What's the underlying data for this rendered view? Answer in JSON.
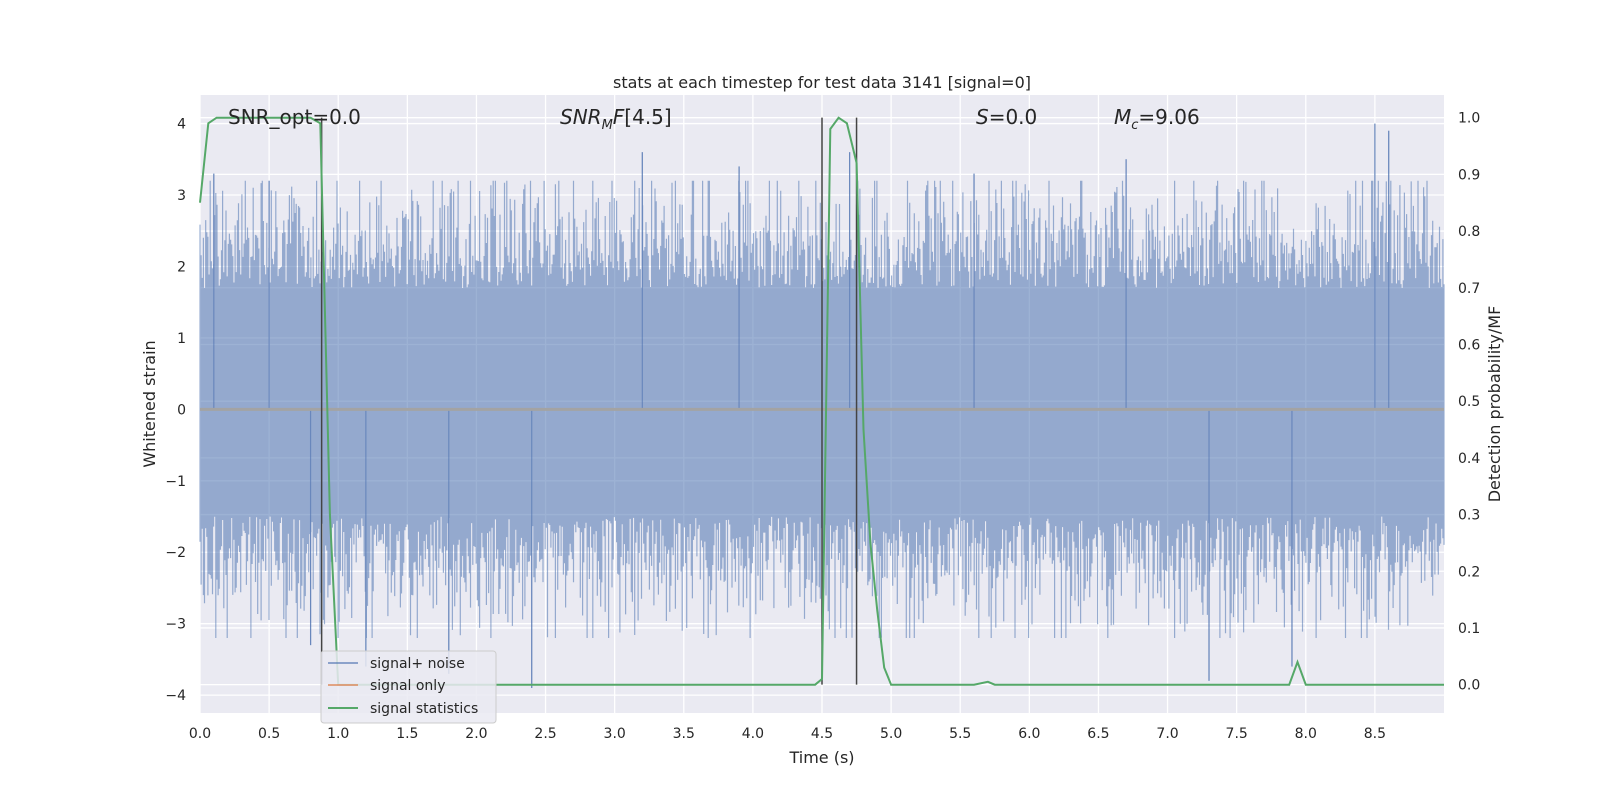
{
  "chart_data": {
    "type": "line",
    "title": "stats at each timestep for test data 3141 [signal=0]",
    "xlabel": "Time (s)",
    "ylabel": "Whitened strain",
    "ylabel_right": "Detection probability/MF",
    "xlim": [
      0.0,
      9.0
    ],
    "ylim": [
      -4.25,
      4.4
    ],
    "ylim_right": [
      -0.05,
      1.04
    ],
    "xticks": [
      "0.0",
      "0.5",
      "1.0",
      "1.5",
      "2.0",
      "2.5",
      "3.0",
      "3.5",
      "4.0",
      "4.5",
      "5.0",
      "5.5",
      "6.0",
      "6.5",
      "7.0",
      "7.5",
      "8.0",
      "8.5"
    ],
    "yticks": [
      "4",
      "3",
      "2",
      "1",
      "0",
      "−1",
      "−2",
      "−3",
      "−4"
    ],
    "yticks_right": [
      "1.0",
      "0.9",
      "0.8",
      "0.7",
      "0.6",
      "0.5",
      "0.4",
      "0.3",
      "0.2",
      "0.1",
      "0.0"
    ],
    "grid": true,
    "background": "#eaeaf2",
    "annotations": [
      {
        "name": "snr-opt",
        "text": "SNR_opt=0.0",
        "x": 0.2
      },
      {
        "name": "snr-mf",
        "text": "[4.5]",
        "x": 2.6
      },
      {
        "name": "s-stat",
        "text": "=0.0",
        "x": 5.6
      },
      {
        "name": "chirp-mass",
        "text": "=9.06",
        "x": 6.6
      }
    ],
    "vertical_lines": [
      0.88,
      4.5,
      4.75
    ],
    "legend": {
      "placement": "lower-left",
      "entries": [
        {
          "label": "signal+ noise",
          "color": "#4c72b0"
        },
        {
          "label": "signal only",
          "color": "#dd8452"
        },
        {
          "label": "signal statistics",
          "color": "#55a868"
        }
      ]
    },
    "series": [
      {
        "name": "signal+ noise",
        "color": "#4c72b0",
        "kind": "noise",
        "typical_envelope": [
          -1.8,
          2.2
        ],
        "extreme_peaks": [
          {
            "x": 0.1,
            "y": 3.3
          },
          {
            "x": 0.5,
            "y": 3.2
          },
          {
            "x": 0.8,
            "y": -3.3
          },
          {
            "x": 1.2,
            "y": -3.6
          },
          {
            "x": 1.8,
            "y": -3.7
          },
          {
            "x": 2.4,
            "y": -3.9
          },
          {
            "x": 3.2,
            "y": 3.6
          },
          {
            "x": 3.9,
            "y": 3.4
          },
          {
            "x": 4.7,
            "y": 3.6
          },
          {
            "x": 5.6,
            "y": 3.3
          },
          {
            "x": 6.7,
            "y": 3.5
          },
          {
            "x": 7.3,
            "y": -3.8
          },
          {
            "x": 7.9,
            "y": -3.6
          },
          {
            "x": 8.5,
            "y": 4.0
          },
          {
            "x": 8.6,
            "y": 3.9
          }
        ]
      },
      {
        "name": "signal only",
        "color": "#dd8452",
        "x": [
          0.0,
          9.0
        ],
        "y": [
          0.0,
          0.0
        ]
      },
      {
        "name": "signal statistics",
        "color": "#55a868",
        "axis": "right",
        "x": [
          0.0,
          0.06,
          0.12,
          0.2,
          0.3,
          0.5,
          0.7,
          0.8,
          0.87,
          0.94,
          1.0,
          1.5,
          2.0,
          3.0,
          4.0,
          4.45,
          4.5,
          4.56,
          4.62,
          4.68,
          4.75,
          4.8,
          4.85,
          4.9,
          4.95,
          5.0,
          5.5,
          5.6,
          5.7,
          5.75,
          6.0,
          7.0,
          7.88,
          7.94,
          8.0,
          8.5,
          9.0
        ],
        "y": [
          0.85,
          0.99,
          1.0,
          1.0,
          1.0,
          1.0,
          1.0,
          1.0,
          0.99,
          0.3,
          0.0,
          0.0,
          0.0,
          0.0,
          0.0,
          0.0,
          0.01,
          0.98,
          1.0,
          0.99,
          0.92,
          0.45,
          0.25,
          0.13,
          0.03,
          0.0,
          0.0,
          0.0,
          0.005,
          0.0,
          0.0,
          0.0,
          0.0,
          0.04,
          0.0,
          0.0,
          0.0
        ]
      }
    ]
  }
}
